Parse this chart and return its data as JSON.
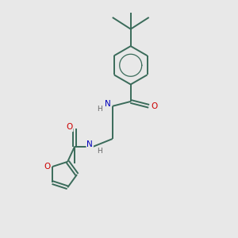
{
  "background_color": "#e8e8e8",
  "bond_color": "#3a6b5a",
  "bond_width": 1.4,
  "atom_colors": {
    "O": "#cc0000",
    "N": "#0000bb",
    "H": "#666666"
  },
  "figsize": [
    3.0,
    3.0
  ],
  "dpi": 100,
  "xlim": [
    0,
    10
  ],
  "ylim": [
    0,
    10
  ]
}
